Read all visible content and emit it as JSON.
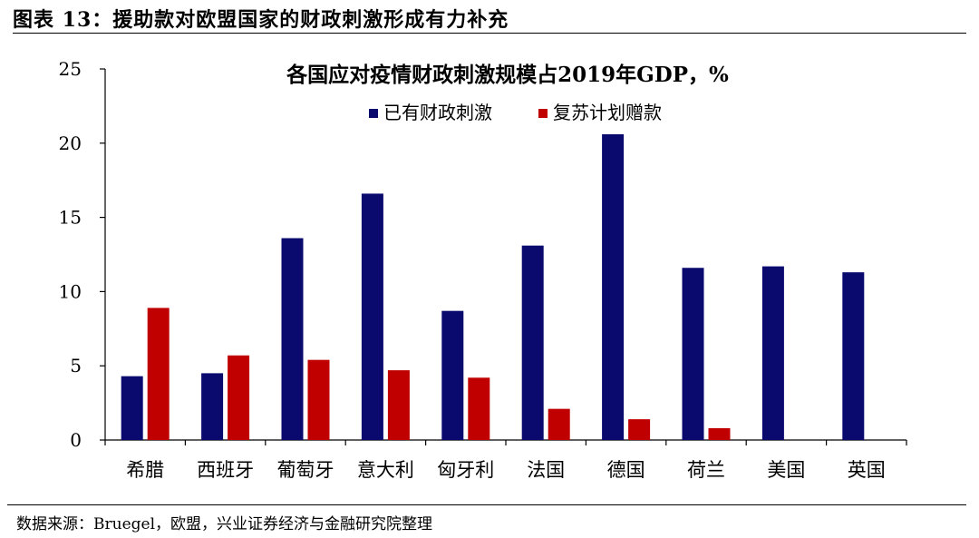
{
  "figure_title": "图表 13：援助款对欧盟国家的财政刺激形成有力补充",
  "source": "数据来源：Bruegel，欧盟，兴业证券经济与金融研究院整理",
  "chart_data": {
    "type": "bar",
    "title": "各国应对疫情财政刺激规模占2019年GDP，%",
    "categories": [
      "希腊",
      "西班牙",
      "葡萄牙",
      "意大利",
      "匈牙利",
      "法国",
      "德国",
      "荷兰",
      "美国",
      "英国"
    ],
    "series": [
      {
        "name": "已有财政刺激",
        "color": "#0a0a6e",
        "values": [
          4.3,
          4.5,
          13.6,
          16.6,
          8.7,
          13.1,
          20.6,
          11.6,
          11.7,
          11.3
        ]
      },
      {
        "name": "复苏计划赠款",
        "color": "#c00000",
        "values": [
          8.9,
          5.7,
          5.4,
          4.7,
          4.2,
          2.1,
          1.4,
          0.8,
          null,
          null
        ]
      }
    ],
    "ylim": [
      0,
      25
    ],
    "yticks": [
      0,
      5,
      10,
      15,
      20,
      25
    ],
    "grid": false,
    "legend_position": "top-center"
  }
}
